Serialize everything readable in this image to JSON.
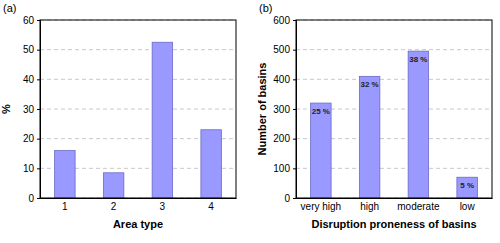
{
  "chart_data": [
    {
      "type": "bar",
      "title": "(a)",
      "xlabel": "Area type",
      "ylabel": "%",
      "categories": [
        "1",
        "2",
        "3",
        "4"
      ],
      "values": [
        16,
        8.5,
        52.5,
        23
      ],
      "color": "#9999ff",
      "ylim": [
        0,
        60
      ],
      "yticks": [
        0,
        10,
        20,
        30,
        40,
        50,
        60
      ],
      "grid": true
    },
    {
      "type": "bar",
      "title": "(b)",
      "xlabel": "Disruption proneness of basins",
      "ylabel": "Number of basins",
      "categories": [
        "very high",
        "high",
        "moderate",
        "low"
      ],
      "values": [
        320,
        410,
        495,
        70
      ],
      "color": "#9999ff",
      "annotations": [
        "25 %",
        "32 %",
        "38 %",
        "5 %"
      ],
      "ylim": [
        0,
        600
      ],
      "yticks": [
        0,
        100,
        200,
        300,
        400,
        500,
        600
      ],
      "grid": true
    }
  ]
}
